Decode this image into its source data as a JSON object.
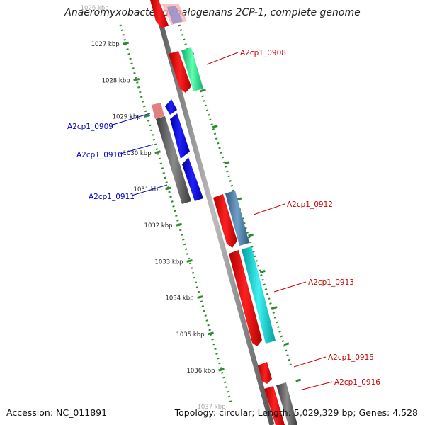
{
  "title": "Anaeromyxobacter dehalogenans 2CP-1, complete genome",
  "accession_label": "Accession: NC_011891",
  "topology_label": "Topology: circular; Length: 5,029,329 bp; Genes: 4,528",
  "ticks": [
    {
      "label": "1026 kbp",
      "faded": true
    },
    {
      "label": "1027 kbp"
    },
    {
      "label": "1028 kbp"
    },
    {
      "label": "1029 kbp"
    },
    {
      "label": "1030 kbp"
    },
    {
      "label": "1031 kbp"
    },
    {
      "label": "1032 kbp"
    },
    {
      "label": "1033 kbp"
    },
    {
      "label": "1034 kbp"
    },
    {
      "label": "1035 kbp"
    },
    {
      "label": "1036 kbp"
    },
    {
      "label": "1037 kbp",
      "faded": true
    }
  ],
  "gene_labels": {
    "left": [
      "A2cp1_0909",
      "A2cp1_0910",
      "A2cp1_0911"
    ],
    "right": [
      "A2cp1_0908",
      "A2cp1_0912",
      "A2cp1_0913",
      "A2cp1_0915",
      "A2cp1_0916"
    ]
  },
  "colors": {
    "left_label": "#0000cc",
    "right_label": "#cc0000",
    "backbone": "#7a7a7a",
    "scale_dots": "#2e8b2e"
  }
}
